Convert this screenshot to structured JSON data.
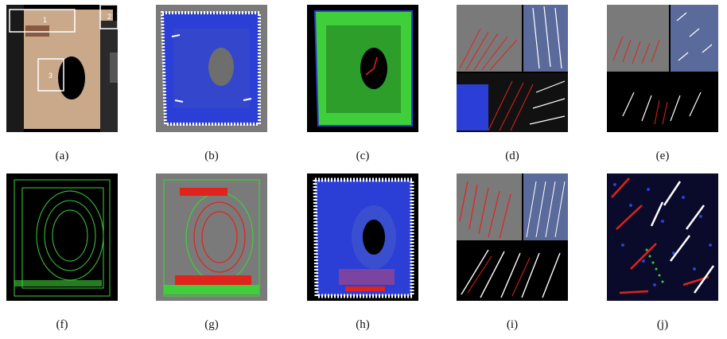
{
  "figure": {
    "panels": [
      {
        "id": "a",
        "caption": "(a)",
        "room_labels": [
          "1",
          "2",
          "3"
        ]
      },
      {
        "id": "b",
        "caption": "(b)"
      },
      {
        "id": "c",
        "caption": "(c)"
      },
      {
        "id": "d",
        "caption": "(d)"
      },
      {
        "id": "e",
        "caption": "(e)"
      },
      {
        "id": "f",
        "caption": "(f)"
      },
      {
        "id": "g",
        "caption": "(g)"
      },
      {
        "id": "h",
        "caption": "(h)"
      },
      {
        "id": "i",
        "caption": "(i)"
      },
      {
        "id": "j",
        "caption": "(j)"
      }
    ],
    "colors": {
      "point_blue": "#2b3ed6",
      "point_white": "#ffffff",
      "point_green": "#3fcf3a",
      "point_red": "#e0231c",
      "background_gray": "#7a7a7a",
      "background_black": "#000000",
      "room_tan": "#c9a98a"
    }
  }
}
